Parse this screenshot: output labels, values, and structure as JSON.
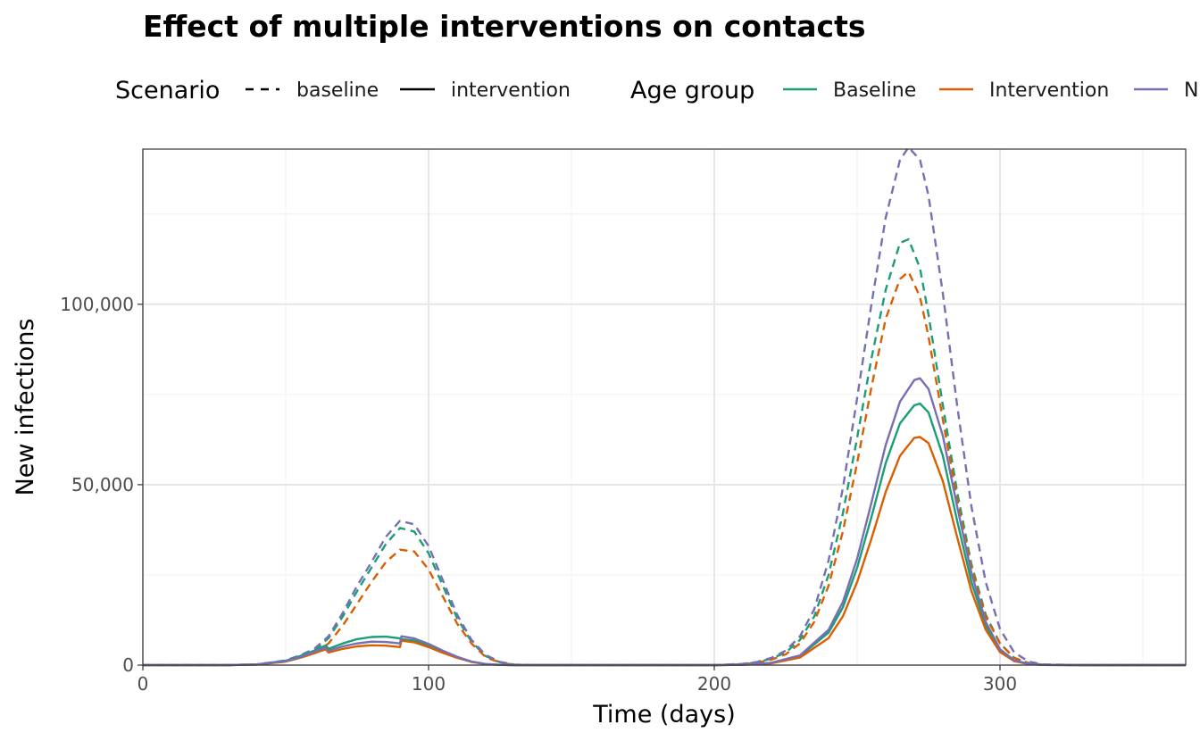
{
  "chart_data": {
    "type": "line",
    "title": "Effect of multiple interventions on contacts",
    "xlabel": "Time (days)",
    "ylabel": "New infections",
    "xlim": [
      0,
      365
    ],
    "ylim": [
      0,
      143000
    ],
    "x_ticks": [
      0,
      100,
      200,
      300
    ],
    "x_tick_labels": [
      "0",
      "100",
      "200",
      "300"
    ],
    "y_ticks": [
      0,
      50000,
      100000
    ],
    "y_tick_labels": [
      "0",
      "50,000",
      "100,000"
    ],
    "grid": true,
    "legend_position": "top",
    "legend": {
      "linetype_title": "Scenario",
      "linetype_entries": [
        {
          "label": "baseline",
          "dash": "dashed"
        },
        {
          "label": "intervention",
          "dash": "solid"
        }
      ],
      "color_title": "Age group",
      "color_entries": [
        {
          "label": "Baseline",
          "color": "#1b9e77"
        },
        {
          "label": "Intervention",
          "color": "#d95f02"
        },
        {
          "label": "N",
          "color": "#7570b3"
        }
      ]
    },
    "series": [
      {
        "name": "Baseline",
        "scenario": "baseline",
        "color": "#1b9e77",
        "dash": "dashed",
        "x": [
          0,
          30,
          40,
          50,
          55,
          60,
          65,
          70,
          75,
          80,
          85,
          90,
          95,
          100,
          105,
          110,
          115,
          120,
          125,
          130,
          140,
          150,
          180,
          200,
          210,
          215,
          220,
          225,
          230,
          235,
          240,
          245,
          250,
          255,
          260,
          265,
          268,
          272,
          275,
          280,
          285,
          290,
          295,
          300,
          305,
          310,
          315,
          330,
          365
        ],
        "y": [
          0,
          0,
          200,
          1200,
          2500,
          4000,
          7500,
          13500,
          20500,
          27000,
          33500,
          38000,
          37000,
          31000,
          22000,
          13000,
          6500,
          2500,
          800,
          100,
          0,
          0,
          0,
          0,
          300,
          800,
          1800,
          3500,
          7000,
          13500,
          25000,
          42000,
          63000,
          85000,
          104000,
          117000,
          118000,
          110000,
          97000,
          72000,
          48000,
          28000,
          14000,
          6000,
          2000,
          600,
          100,
          0,
          0
        ]
      },
      {
        "name": "Intervention",
        "scenario": "baseline",
        "color": "#d95f02",
        "dash": "dashed",
        "x": [
          0,
          30,
          40,
          50,
          55,
          60,
          65,
          70,
          75,
          80,
          85,
          90,
          95,
          100,
          105,
          110,
          115,
          120,
          125,
          130,
          140,
          150,
          180,
          200,
          210,
          215,
          220,
          225,
          230,
          235,
          240,
          245,
          250,
          255,
          260,
          265,
          268,
          272,
          275,
          280,
          285,
          290,
          295,
          300,
          305,
          310,
          315,
          330,
          365
        ],
        "y": [
          0,
          0,
          150,
          1000,
          2000,
          3300,
          6000,
          11000,
          17000,
          23000,
          28500,
          32000,
          31500,
          26500,
          19000,
          11500,
          6000,
          2200,
          700,
          100,
          0,
          0,
          0,
          0,
          250,
          700,
          1500,
          3000,
          6000,
          12000,
          22000,
          37000,
          56000,
          77000,
          96000,
          107000,
          109000,
          102000,
          91000,
          68000,
          46000,
          27000,
          13500,
          6000,
          2000,
          600,
          100,
          0,
          0
        ]
      },
      {
        "name": "N",
        "scenario": "baseline",
        "color": "#7570b3",
        "dash": "dashed",
        "x": [
          0,
          30,
          40,
          50,
          55,
          60,
          65,
          70,
          75,
          80,
          85,
          90,
          95,
          100,
          105,
          110,
          115,
          120,
          125,
          130,
          140,
          150,
          180,
          200,
          210,
          215,
          220,
          225,
          230,
          235,
          240,
          245,
          250,
          255,
          260,
          265,
          268,
          272,
          275,
          280,
          285,
          290,
          295,
          300,
          305,
          310,
          315,
          330,
          365
        ],
        "y": [
          0,
          0,
          220,
          1300,
          2700,
          4500,
          8000,
          14500,
          22000,
          28500,
          35500,
          40000,
          39000,
          33000,
          23500,
          14000,
          7000,
          2800,
          900,
          150,
          0,
          0,
          0,
          0,
          350,
          900,
          2000,
          4000,
          8000,
          15500,
          29000,
          49000,
          74000,
          100000,
          124000,
          140000,
          143500,
          140000,
          130000,
          103000,
          72000,
          44000,
          23000,
          10000,
          3500,
          1000,
          200,
          0,
          0
        ]
      },
      {
        "name": "Baseline",
        "scenario": "intervention",
        "color": "#1b9e77",
        "dash": "solid",
        "x": [
          0,
          30,
          40,
          50,
          55,
          60,
          64,
          65,
          70,
          75,
          80,
          85,
          90,
          90.5,
          95,
          100,
          105,
          110,
          115,
          120,
          125,
          130,
          140,
          150,
          180,
          200,
          210,
          220,
          230,
          240,
          245,
          250,
          255,
          260,
          265,
          270,
          272,
          275,
          280,
          285,
          290,
          295,
          300,
          305,
          310,
          315,
          330,
          365
        ],
        "y": [
          0,
          0,
          200,
          1200,
          2500,
          4000,
          5500,
          4500,
          6000,
          7200,
          7800,
          7900,
          7400,
          7200,
          6800,
          5500,
          3800,
          2200,
          1000,
          300,
          80,
          0,
          0,
          0,
          0,
          0,
          100,
          600,
          2500,
          9000,
          16000,
          27000,
          41000,
          56000,
          67000,
          72000,
          72500,
          70000,
          58000,
          40000,
          23000,
          11000,
          4000,
          1200,
          300,
          50,
          0,
          0
        ]
      },
      {
        "name": "Intervention",
        "scenario": "intervention",
        "color": "#d95f02",
        "dash": "solid",
        "x": [
          0,
          30,
          40,
          50,
          55,
          60,
          64,
          65,
          70,
          75,
          80,
          85,
          90,
          90.5,
          95,
          100,
          105,
          110,
          115,
          120,
          125,
          130,
          140,
          150,
          180,
          200,
          210,
          220,
          230,
          240,
          245,
          250,
          255,
          260,
          265,
          270,
          272,
          275,
          280,
          285,
          290,
          295,
          300,
          305,
          310,
          315,
          330,
          365
        ],
        "y": [
          0,
          0,
          150,
          1000,
          2000,
          3300,
          4400,
          3500,
          4500,
          5200,
          5500,
          5400,
          5000,
          6800,
          6300,
          5000,
          3400,
          2000,
          900,
          250,
          60,
          0,
          0,
          0,
          0,
          0,
          80,
          500,
          2100,
          7500,
          13500,
          23000,
          35000,
          48000,
          58000,
          63000,
          63200,
          61500,
          51000,
          35500,
          20500,
          9800,
          3600,
          1100,
          300,
          50,
          0,
          0
        ]
      },
      {
        "name": "N",
        "scenario": "intervention",
        "color": "#7570b3",
        "dash": "solid",
        "x": [
          0,
          30,
          40,
          50,
          55,
          60,
          64,
          65,
          70,
          75,
          80,
          85,
          90,
          90.5,
          95,
          100,
          105,
          110,
          115,
          120,
          125,
          130,
          140,
          150,
          180,
          200,
          210,
          220,
          230,
          240,
          245,
          250,
          255,
          260,
          265,
          270,
          272,
          275,
          280,
          285,
          290,
          295,
          300,
          305,
          310,
          315,
          330,
          365
        ],
        "y": [
          0,
          0,
          200,
          1100,
          2200,
          3700,
          4900,
          4000,
          5200,
          6000,
          6500,
          6400,
          6000,
          8000,
          7400,
          5900,
          4000,
          2300,
          1000,
          300,
          80,
          0,
          0,
          0,
          0,
          0,
          110,
          650,
          2700,
          9800,
          17500,
          29500,
          45000,
          61000,
          73000,
          79000,
          79500,
          76500,
          63500,
          44000,
          25500,
          12000,
          4400,
          1300,
          350,
          60,
          0,
          0
        ]
      }
    ]
  }
}
